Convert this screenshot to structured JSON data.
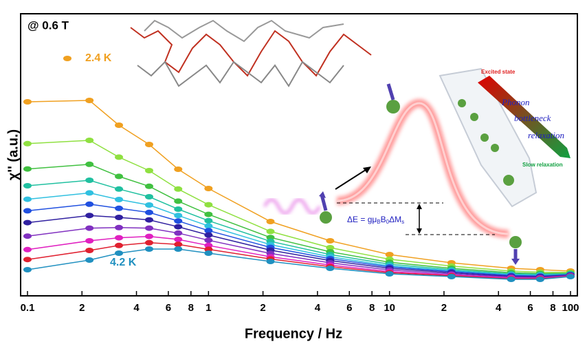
{
  "chart_data": {
    "type": "line",
    "title": "@ 0.6 T",
    "x_label": "Frequency / Hz",
    "y_label": "χ'' (a.u.)",
    "log_x": true,
    "xlim": [
      0.1,
      100
    ],
    "ylim": [
      0,
      100
    ],
    "xticks": [
      0.1,
      {
        "value": 0.2,
        "label": "2"
      },
      {
        "value": 0.4,
        "label": "4"
      },
      {
        "value": 0.6,
        "label": "6"
      },
      {
        "value": 0.8,
        "label": "8"
      },
      1,
      {
        "value": 2,
        "label": "2"
      },
      {
        "value": 4,
        "label": "4"
      },
      {
        "value": 6,
        "label": "6"
      },
      {
        "value": 8,
        "label": "8"
      },
      10,
      {
        "value": 20,
        "label": "2"
      },
      {
        "value": 40,
        "label": "4"
      },
      {
        "value": 60,
        "label": "6"
      },
      {
        "value": 80,
        "label": "8"
      },
      100
    ],
    "x": [
      0.1,
      0.22,
      0.32,
      0.47,
      0.68,
      1,
      2.2,
      4.7,
      10,
      22,
      47,
      68,
      100
    ],
    "series": [
      {
        "name": "2.4 K",
        "color": "#f0a020",
        "values": [
          70.5,
          71,
          62,
          55,
          46,
          39,
          27,
          20,
          15,
          12,
          10,
          9.5,
          9
        ]
      },
      {
        "color": "#8fe040",
        "values": [
          55.3,
          56.5,
          50.4,
          45.5,
          38.8,
          33.1,
          23.4,
          17.5,
          13.3,
          10.8,
          9,
          8.6,
          8.5
        ]
      },
      {
        "color": "#40c040",
        "values": [
          46.1,
          47.8,
          43.4,
          39.8,
          34.4,
          29.6,
          21.2,
          16,
          12.2,
          10,
          8.4,
          8.1,
          8.2
        ]
      },
      {
        "color": "#20c0a0",
        "values": [
          40,
          42,
          38.8,
          36,
          31.5,
          27.3,
          19.8,
          15,
          11.5,
          9.5,
          8,
          7.8,
          8
        ]
      },
      {
        "color": "#30c0e0",
        "values": [
          35.1,
          37.4,
          35.0,
          33.0,
          29.2,
          25.4,
          18.6,
          14.2,
          10.9,
          9.1,
          7.7,
          7.5,
          7.8
        ]
      },
      {
        "color": "#2050e0",
        "values": [
          30.9,
          33.3,
          31.8,
          30.3,
          27.2,
          23.7,
          17.6,
          13.5,
          10.5,
          8.8,
          7.4,
          7.2,
          7.7
        ]
      },
      {
        "color": "#3020a0",
        "values": [
          26.6,
          29.2,
          28.5,
          27.6,
          25.1,
          22.1,
          16.6,
          12.8,
          10,
          8.4,
          7.1,
          7,
          7.6
        ]
      },
      {
        "color": "#8030c0",
        "values": [
          21.7,
          24.6,
          24.8,
          24.6,
          22.8,
          20.2,
          15.4,
          12,
          9.4,
          8,
          6.8,
          6.7,
          7.4
        ]
      },
      {
        "color": "#e020c0",
        "values": [
          16.8,
          20,
          21.1,
          21.6,
          20.5,
          18.3,
          14.2,
          11.2,
          8.8,
          7.6,
          6.5,
          6.4,
          7.2
        ]
      },
      {
        "color": "#e02030",
        "values": [
          13.2,
          16.5,
          18.3,
          19.3,
          18.7,
          16.9,
          13.4,
          10.6,
          8.4,
          7.3,
          6.2,
          6.2,
          7.1
        ]
      },
      {
        "name": "4.2 K",
        "color": "#2090c0",
        "values": [
          9.5,
          13,
          15.5,
          17,
          17,
          15.5,
          12.5,
          10,
          8,
          7,
          6,
          6,
          7
        ]
      }
    ],
    "annotations": {
      "excited": "Excited state",
      "phonon": "Phonon",
      "bottleneck": "bottleneck",
      "relaxation": "relaxation",
      "slow": "Slow relaxation",
      "delta_e": [
        "ΔE = gμ",
        "B",
        "B",
        "0",
        "ΔM",
        "s"
      ]
    }
  }
}
